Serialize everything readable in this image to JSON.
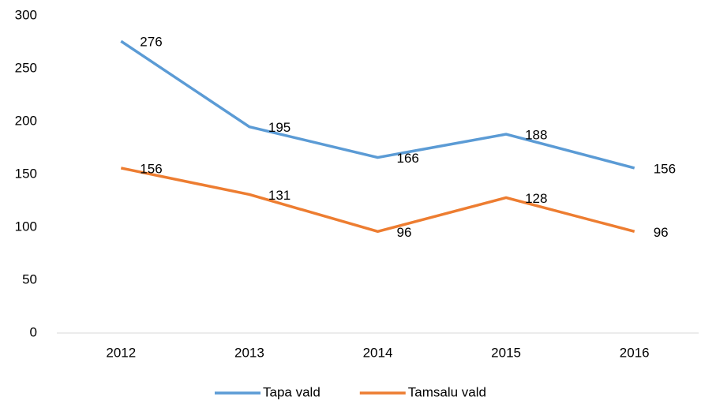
{
  "chart_data": {
    "type": "line",
    "categories": [
      "2012",
      "2013",
      "2014",
      "2015",
      "2016"
    ],
    "series": [
      {
        "name": "Tapa vald",
        "color": "#5b9bd5",
        "values": [
          276,
          195,
          166,
          188,
          156
        ]
      },
      {
        "name": "Tamsalu vald",
        "color": "#ed7d31",
        "values": [
          156,
          131,
          96,
          128,
          96
        ]
      }
    ],
    "ylim": [
      0,
      300
    ],
    "yticks": [
      0,
      50,
      100,
      150,
      200,
      250,
      300
    ],
    "grid": false,
    "legend": "bottom"
  }
}
